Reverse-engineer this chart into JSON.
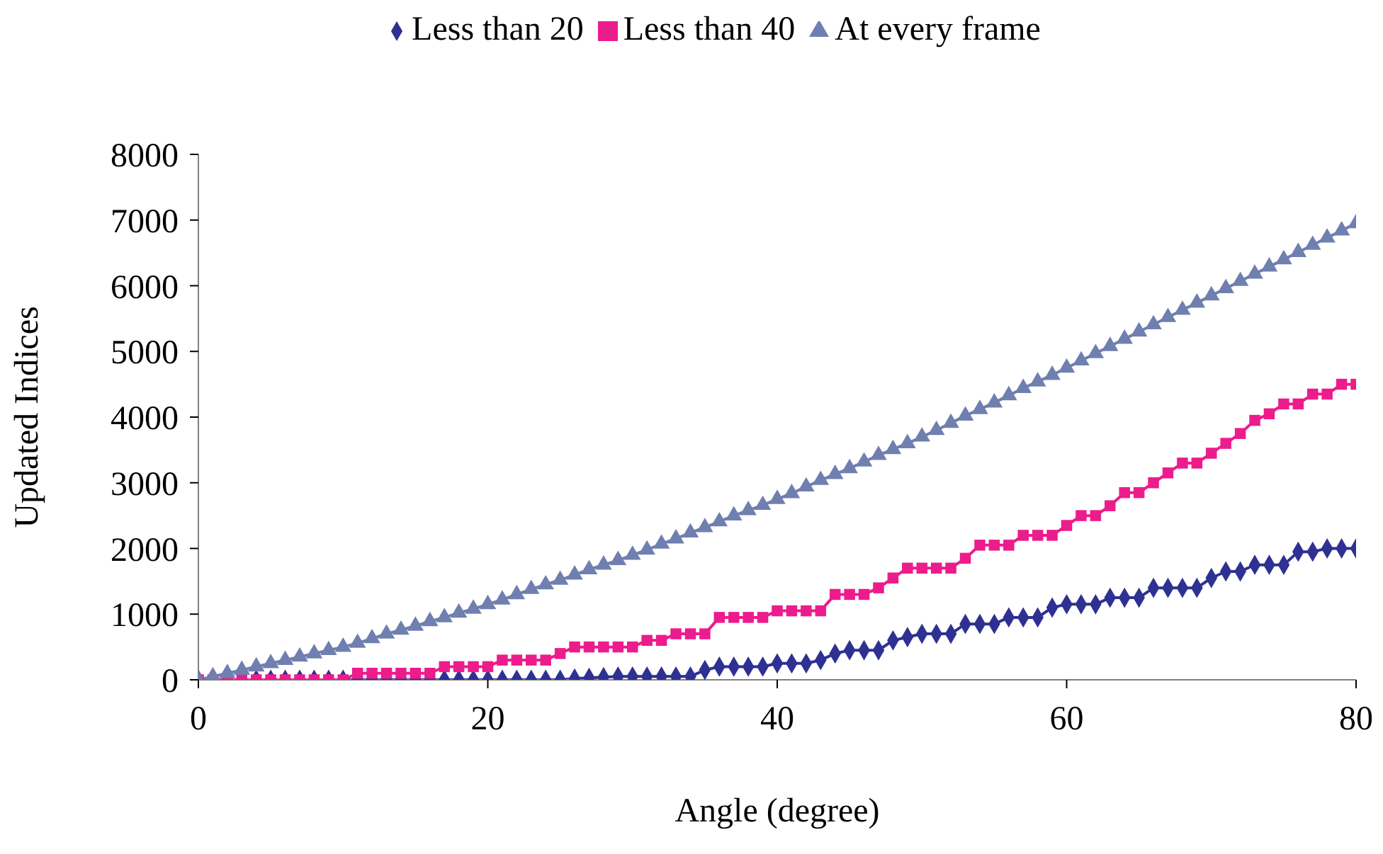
{
  "chart_data": {
    "type": "line",
    "xlabel": "Angle (degree)",
    "ylabel": "Updated Indices",
    "x": [
      0,
      1,
      2,
      3,
      4,
      5,
      6,
      7,
      8,
      9,
      10,
      11,
      12,
      13,
      14,
      15,
      16,
      17,
      18,
      19,
      20,
      21,
      22,
      23,
      24,
      25,
      26,
      27,
      28,
      29,
      30,
      31,
      32,
      33,
      34,
      35,
      36,
      37,
      38,
      39,
      40,
      41,
      42,
      43,
      44,
      45,
      46,
      47,
      48,
      49,
      50,
      51,
      52,
      53,
      54,
      55,
      56,
      57,
      58,
      59,
      60,
      61,
      62,
      63,
      64,
      65,
      66,
      67,
      68,
      69,
      70,
      71,
      72,
      73,
      74,
      75,
      76,
      77,
      78,
      79,
      80
    ],
    "series": [
      {
        "name": "Less than 20",
        "color": "#2e3192",
        "marker": "diamond",
        "values": [
          0,
          0,
          0,
          0,
          0,
          0,
          0,
          0,
          0,
          0,
          0,
          0,
          0,
          0,
          0,
          0,
          0,
          0,
          0,
          0,
          0,
          0,
          0,
          0,
          0,
          0,
          20,
          30,
          40,
          50,
          50,
          50,
          50,
          50,
          50,
          150,
          200,
          200,
          200,
          200,
          250,
          250,
          250,
          300,
          400,
          450,
          450,
          450,
          600,
          650,
          700,
          700,
          700,
          850,
          850,
          850,
          950,
          950,
          950,
          1100,
          1150,
          1150,
          1150,
          1250,
          1250,
          1250,
          1400,
          1400,
          1400,
          1400,
          1550,
          1650,
          1650,
          1750,
          1750,
          1750,
          1950,
          1950,
          2000,
          2000,
          2000
        ]
      },
      {
        "name": "Less than 40",
        "color": "#ec1c8c",
        "marker": "square",
        "values": [
          0,
          0,
          0,
          0,
          0,
          0,
          0,
          0,
          0,
          0,
          0,
          100,
          100,
          100,
          100,
          100,
          100,
          200,
          200,
          200,
          200,
          300,
          300,
          300,
          300,
          400,
          500,
          500,
          500,
          500,
          500,
          600,
          600,
          700,
          700,
          700,
          950,
          950,
          950,
          950,
          1050,
          1050,
          1050,
          1050,
          1300,
          1300,
          1300,
          1400,
          1550,
          1700,
          1700,
          1700,
          1700,
          1850,
          2050,
          2050,
          2050,
          2200,
          2200,
          2200,
          2350,
          2500,
          2500,
          2650,
          2850,
          2850,
          3000,
          3150,
          3300,
          3300,
          3450,
          3600,
          3750,
          3950,
          4050,
          4200,
          4200,
          4350,
          4350,
          4500,
          4500
        ]
      },
      {
        "name": "At every frame",
        "color": "#6f7faf",
        "marker": "triangle",
        "values": [
          0,
          50,
          100,
          150,
          200,
          250,
          300,
          350,
          400,
          450,
          500,
          560,
          630,
          700,
          760,
          820,
          890,
          950,
          1020,
          1080,
          1150,
          1220,
          1300,
          1380,
          1450,
          1520,
          1600,
          1680,
          1750,
          1820,
          1900,
          1980,
          2070,
          2150,
          2240,
          2320,
          2410,
          2500,
          2580,
          2660,
          2750,
          2840,
          2940,
          3040,
          3130,
          3220,
          3320,
          3420,
          3510,
          3600,
          3700,
          3800,
          3910,
          4020,
          4120,
          4220,
          4330,
          4440,
          4540,
          4640,
          4750,
          4860,
          4970,
          5080,
          5190,
          5300,
          5410,
          5520,
          5630,
          5740,
          5850,
          5960,
          6070,
          6180,
          6290,
          6400,
          6510,
          6620,
          6730,
          6840,
          6950
        ]
      }
    ],
    "xlim": [
      0,
      80
    ],
    "xticks": [
      0,
      20,
      40,
      60,
      80
    ],
    "ylim": [
      0,
      8000
    ],
    "yticks": [
      0,
      1000,
      2000,
      3000,
      4000,
      5000,
      6000,
      7000,
      8000
    ],
    "grid": false,
    "legend": "top"
  }
}
